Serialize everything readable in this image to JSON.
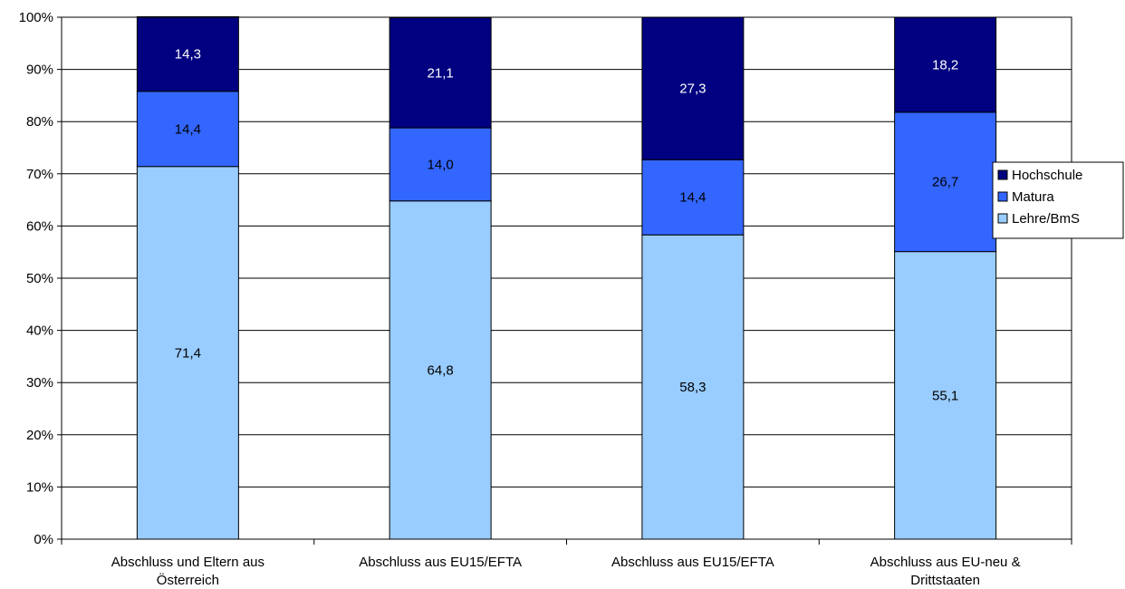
{
  "chart_data": {
    "type": "bar",
    "stacked": true,
    "percent": true,
    "categories": [
      [
        "Abschluss und Eltern aus",
        "Österreich"
      ],
      [
        "Abschluss aus EU15/EFTA"
      ],
      [
        "Abschluss aus EU15/EFTA"
      ],
      [
        "Abschluss aus EU-neu &",
        "Drittstaaten"
      ]
    ],
    "series": [
      {
        "name": "Lehre/BmS",
        "values": [
          71.4,
          64.8,
          58.3,
          55.1
        ],
        "labels": [
          "71,4",
          "64,8",
          "58,3",
          "55,1"
        ],
        "color": "#99ccff",
        "label_color": "#000000"
      },
      {
        "name": "Matura",
        "values": [
          14.4,
          14.0,
          14.4,
          26.7
        ],
        "labels": [
          "14,4",
          "14,0",
          "14,4",
          "26,7"
        ],
        "color": "#3366ff",
        "label_color": "#000000"
      },
      {
        "name": "Hochschule",
        "values": [
          14.3,
          21.1,
          27.3,
          18.2
        ],
        "labels": [
          "14,3",
          "21,1",
          "27,3",
          "18,2"
        ],
        "color": "#000080",
        "label_color": "#ffffff"
      }
    ],
    "yticks": [
      "0%",
      "10%",
      "20%",
      "30%",
      "40%",
      "50%",
      "60%",
      "70%",
      "80%",
      "90%",
      "100%"
    ],
    "ylim": [
      0,
      100
    ],
    "grid": true,
    "legend_position": "right",
    "legend_order": [
      "Hochschule",
      "Matura",
      "Lehre/BmS"
    ],
    "title": "",
    "xlabel": "",
    "ylabel": ""
  }
}
